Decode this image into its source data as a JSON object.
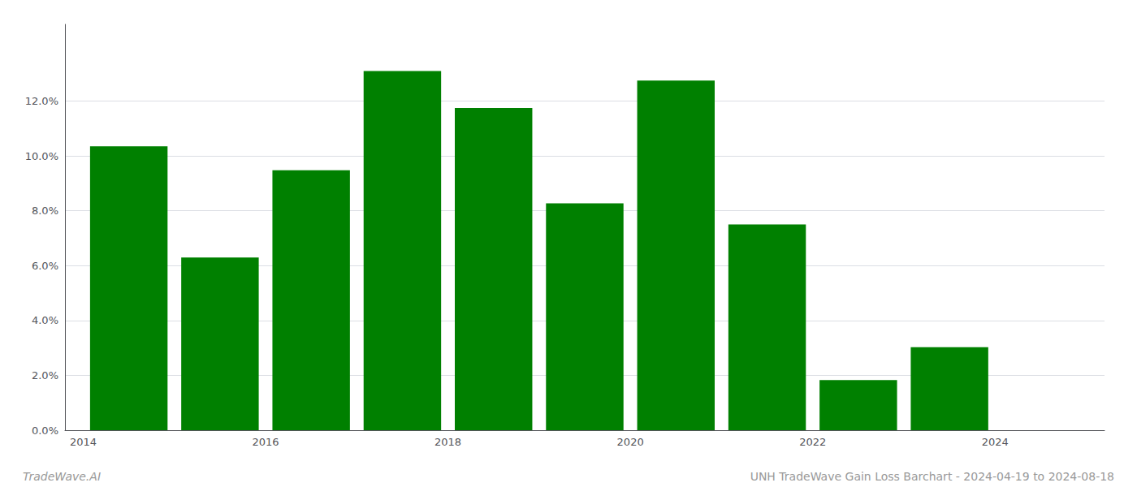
{
  "chart_data": {
    "type": "bar",
    "x": [
      2014,
      2015,
      2016,
      2017,
      2018,
      2019,
      2020,
      2021,
      2022,
      2023
    ],
    "values": [
      0.1035,
      0.063,
      0.0948,
      0.131,
      0.1175,
      0.0827,
      0.1275,
      0.075,
      0.0183,
      0.0303
    ],
    "color": "#008000",
    "xlim": [
      2013.3,
      2024.7
    ],
    "xticks": [
      {
        "value": 2013.5,
        "label": "2014"
      },
      {
        "value": 2015.5,
        "label": "2016"
      },
      {
        "value": 2017.5,
        "label": "2018"
      },
      {
        "value": 2019.5,
        "label": "2020"
      },
      {
        "value": 2021.5,
        "label": "2022"
      },
      {
        "value": 2023.5,
        "label": "2024"
      }
    ],
    "ylim": [
      0,
      0.148
    ],
    "yticks": [
      {
        "value": 0.0,
        "label": "0.0%"
      },
      {
        "value": 0.02,
        "label": "2.0%"
      },
      {
        "value": 0.04,
        "label": "4.0%"
      },
      {
        "value": 0.06,
        "label": "6.0%"
      },
      {
        "value": 0.08,
        "label": "8.0%"
      },
      {
        "value": 0.1,
        "label": "10.0%"
      },
      {
        "value": 0.12,
        "label": "12.0%"
      }
    ],
    "grid": true,
    "annotations": [
      "TradeWave.AI",
      "UNH TradeWave Gain Loss Barchart - 2024-04-19 to 2024-08-18"
    ]
  }
}
